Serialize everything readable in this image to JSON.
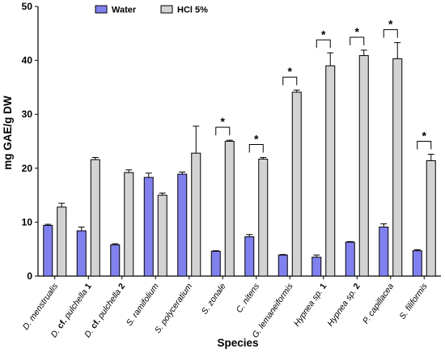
{
  "chart_data": {
    "type": "bar",
    "title": "",
    "xlabel": "Species",
    "ylabel": "mg GAE/g DW",
    "ylim": [
      0,
      50
    ],
    "yticks": [
      0,
      10,
      20,
      30,
      40,
      50
    ],
    "legend_position": "top",
    "grid": false,
    "categories": [
      [
        {
          "t": "D. menstrualis",
          "b": false
        }
      ],
      [
        {
          "t": "D. ",
          "b": false
        },
        {
          "t": "cf.",
          "b": true
        },
        {
          "t": " pulchella ",
          "b": false
        },
        {
          "t": "1",
          "b": true
        }
      ],
      [
        {
          "t": "D. ",
          "b": false
        },
        {
          "t": "cf.",
          "b": true
        },
        {
          "t": " pulchella ",
          "b": false
        },
        {
          "t": "2",
          "b": true
        }
      ],
      [
        {
          "t": "S. ramifolium",
          "b": false
        }
      ],
      [
        {
          "t": "S. polyceratium",
          "b": false
        }
      ],
      [
        {
          "t": "S. zonale",
          "b": false
        }
      ],
      [
        {
          "t": "C. nitens",
          "b": false
        }
      ],
      [
        {
          "t": "G. lemaneiformis",
          "b": false
        }
      ],
      [
        {
          "t": "Hypnea sp. ",
          "b": false
        },
        {
          "t": "1",
          "b": true
        }
      ],
      [
        {
          "t": "Hypnea sp. ",
          "b": false
        },
        {
          "t": "2",
          "b": true
        }
      ],
      [
        {
          "t": "P. capillacea",
          "b": false
        }
      ],
      [
        {
          "t": "S. filiformis",
          "b": false
        }
      ]
    ],
    "series": [
      {
        "name": "Water",
        "color": "#8080ef",
        "values": [
          9.4,
          8.4,
          5.8,
          18.3,
          18.9,
          4.6,
          7.3,
          3.9,
          3.5,
          6.3,
          9.1,
          4.7
        ],
        "errors": [
          0.2,
          0.7,
          0.2,
          0.8,
          0.4,
          0.1,
          0.4,
          0.1,
          0.4,
          0.1,
          0.6,
          0.2
        ]
      },
      {
        "name": "HCl 5%",
        "color": "#d3d3d3",
        "values": [
          12.8,
          21.6,
          19.2,
          15.0,
          22.8,
          25.0,
          21.7,
          34.1,
          39.0,
          40.9,
          40.3,
          21.4
        ],
        "errors": [
          0.7,
          0.4,
          0.5,
          0.4,
          5.0,
          0.2,
          0.3,
          0.4,
          2.4,
          1.0,
          3.0,
          1.2
        ]
      }
    ],
    "significance": {
      "marker": "*",
      "categories_index": [
        5,
        6,
        7,
        8,
        9,
        10,
        11
      ]
    }
  }
}
